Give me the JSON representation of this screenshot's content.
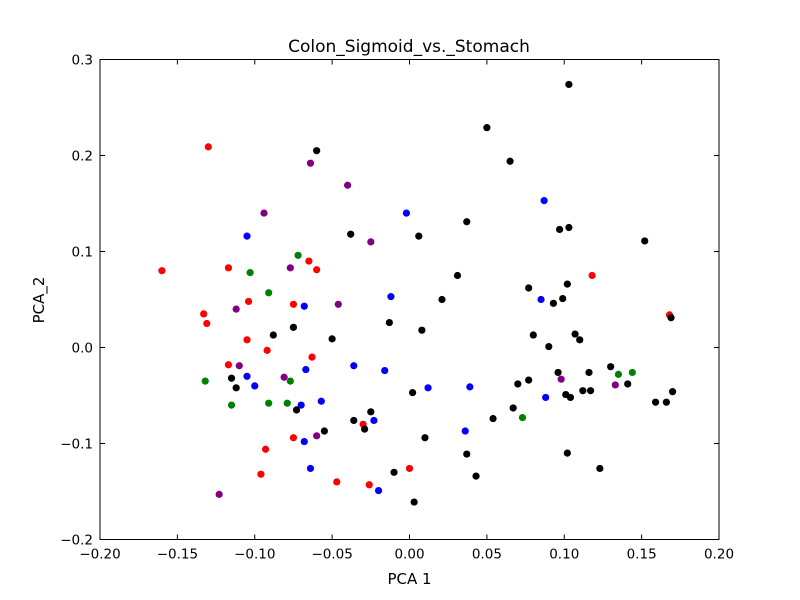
{
  "chart_data": {
    "type": "scatter",
    "title": "Colon_Sigmoid_vs._Stomach",
    "xlabel": "PCA 1",
    "ylabel": "PCA_2",
    "xlim": [
      -0.2,
      0.2
    ],
    "ylim": [
      -0.2,
      0.3
    ],
    "xticks": [
      -0.2,
      -0.15,
      -0.1,
      -0.05,
      0.0,
      0.05,
      0.1,
      0.15,
      0.2
    ],
    "xtick_labels": [
      "−0.20",
      "−0.15",
      "−0.10",
      "−0.05",
      "0.00",
      "0.05",
      "0.10",
      "0.15",
      "0.20"
    ],
    "yticks": [
      -0.2,
      -0.1,
      0.0,
      0.1,
      0.2,
      0.3
    ],
    "ytick_labels": [
      "−0.2",
      "−0.1",
      "0.0",
      "0.1",
      "0.2",
      "0.3"
    ],
    "grid": false,
    "legend": false,
    "series": [
      {
        "color": "#ff0000",
        "points": [
          [
            -0.16,
            0.08
          ],
          [
            -0.13,
            0.209
          ],
          [
            -0.133,
            0.035
          ],
          [
            -0.131,
            0.025
          ],
          [
            -0.117,
            0.083
          ],
          [
            -0.117,
            -0.018
          ],
          [
            -0.105,
            0.008
          ],
          [
            -0.104,
            0.048
          ],
          [
            -0.096,
            -0.132
          ],
          [
            -0.093,
            -0.106
          ],
          [
            -0.092,
            -0.003
          ],
          [
            -0.075,
            0.045
          ],
          [
            -0.075,
            -0.094
          ],
          [
            -0.065,
            0.09
          ],
          [
            -0.063,
            -0.01
          ],
          [
            -0.06,
            0.081
          ],
          [
            -0.047,
            -0.14
          ],
          [
            -0.03,
            -0.08
          ],
          [
            -0.026,
            -0.143
          ],
          [
            0.0,
            -0.126
          ],
          [
            0.118,
            0.075
          ],
          [
            0.168,
            0.034
          ]
        ]
      },
      {
        "color": "#0000ff",
        "points": [
          [
            -0.105,
            0.116
          ],
          [
            -0.105,
            -0.03
          ],
          [
            -0.1,
            -0.04
          ],
          [
            -0.07,
            -0.06
          ],
          [
            -0.068,
            0.043
          ],
          [
            -0.068,
            -0.098
          ],
          [
            -0.067,
            -0.023
          ],
          [
            -0.064,
            -0.126
          ],
          [
            -0.057,
            -0.056
          ],
          [
            -0.036,
            -0.019
          ],
          [
            -0.023,
            -0.076
          ],
          [
            -0.02,
            -0.149
          ],
          [
            -0.016,
            -0.024
          ],
          [
            -0.012,
            0.053
          ],
          [
            -0.002,
            0.14
          ],
          [
            0.012,
            -0.042
          ],
          [
            0.036,
            -0.087
          ],
          [
            0.039,
            -0.041
          ],
          [
            0.085,
            0.05
          ],
          [
            0.087,
            0.153
          ],
          [
            0.088,
            -0.052
          ]
        ]
      },
      {
        "color": "#008000",
        "points": [
          [
            -0.132,
            -0.035
          ],
          [
            -0.115,
            -0.06
          ],
          [
            -0.103,
            0.078
          ],
          [
            -0.091,
            0.057
          ],
          [
            -0.091,
            -0.058
          ],
          [
            -0.079,
            -0.058
          ],
          [
            -0.077,
            -0.035
          ],
          [
            -0.072,
            0.096
          ],
          [
            0.073,
            -0.073
          ],
          [
            0.135,
            -0.028
          ],
          [
            0.144,
            -0.026
          ]
        ]
      },
      {
        "color": "#800080",
        "points": [
          [
            -0.123,
            -0.153
          ],
          [
            -0.112,
            0.04
          ],
          [
            -0.11,
            -0.019
          ],
          [
            -0.094,
            0.14
          ],
          [
            -0.081,
            -0.031
          ],
          [
            -0.077,
            0.083
          ],
          [
            -0.064,
            0.192
          ],
          [
            -0.06,
            -0.092
          ],
          [
            -0.046,
            0.045
          ],
          [
            -0.04,
            0.169
          ],
          [
            -0.025,
            0.11
          ],
          [
            0.098,
            -0.033
          ],
          [
            0.133,
            -0.039
          ]
        ]
      },
      {
        "color": "#000000",
        "points": [
          [
            -0.115,
            -0.032
          ],
          [
            -0.112,
            -0.042
          ],
          [
            -0.088,
            0.013
          ],
          [
            -0.075,
            0.021
          ],
          [
            -0.073,
            -0.065
          ],
          [
            -0.06,
            0.205
          ],
          [
            -0.055,
            -0.087
          ],
          [
            -0.05,
            0.009
          ],
          [
            -0.038,
            0.118
          ],
          [
            -0.036,
            -0.076
          ],
          [
            -0.029,
            -0.085
          ],
          [
            -0.025,
            -0.067
          ],
          [
            -0.013,
            0.026
          ],
          [
            -0.01,
            -0.13
          ],
          [
            0.002,
            -0.047
          ],
          [
            0.003,
            -0.161
          ],
          [
            0.006,
            0.116
          ],
          [
            0.008,
            0.018
          ],
          [
            0.01,
            -0.094
          ],
          [
            0.021,
            0.05
          ],
          [
            0.031,
            0.075
          ],
          [
            0.037,
            0.131
          ],
          [
            0.037,
            -0.111
          ],
          [
            0.043,
            -0.134
          ],
          [
            0.05,
            0.229
          ],
          [
            0.054,
            -0.074
          ],
          [
            0.065,
            0.194
          ],
          [
            0.067,
            -0.063
          ],
          [
            0.07,
            -0.038
          ],
          [
            0.077,
            0.062
          ],
          [
            0.077,
            -0.034
          ],
          [
            0.08,
            0.013
          ],
          [
            0.09,
            0.001
          ],
          [
            0.093,
            0.046
          ],
          [
            0.096,
            -0.026
          ],
          [
            0.097,
            0.123
          ],
          [
            0.099,
            0.051
          ],
          [
            0.101,
            -0.049
          ],
          [
            0.102,
            0.066
          ],
          [
            0.102,
            -0.11
          ],
          [
            0.103,
            0.125
          ],
          [
            0.103,
            0.274
          ],
          [
            0.104,
            -0.052
          ],
          [
            0.107,
            0.014
          ],
          [
            0.11,
            0.008
          ],
          [
            0.112,
            -0.045
          ],
          [
            0.116,
            -0.026
          ],
          [
            0.117,
            -0.045
          ],
          [
            0.123,
            -0.126
          ],
          [
            0.13,
            -0.02
          ],
          [
            0.141,
            -0.038
          ],
          [
            0.152,
            0.111
          ],
          [
            0.159,
            -0.057
          ],
          [
            0.166,
            -0.057
          ],
          [
            0.169,
            0.031
          ],
          [
            0.17,
            -0.046
          ]
        ]
      }
    ]
  }
}
